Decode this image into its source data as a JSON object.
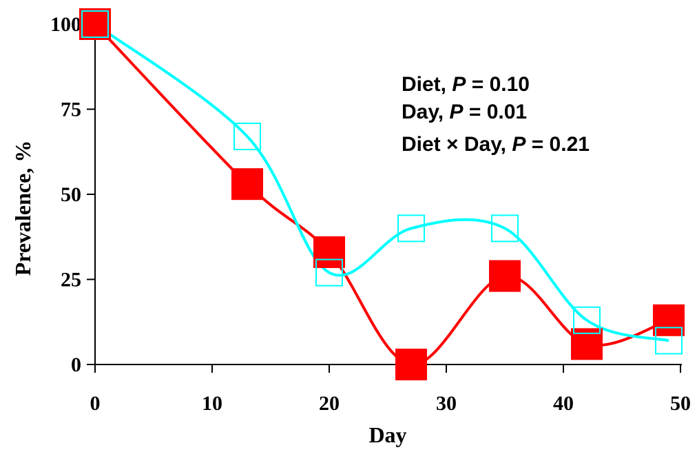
{
  "chart_data": {
    "type": "line",
    "title": "",
    "xlabel": "Day",
    "ylabel": "Prevalence, %",
    "xlim": [
      0,
      50
    ],
    "ylim": [
      0,
      100
    ],
    "xticks": [
      0,
      10,
      20,
      30,
      40,
      50
    ],
    "yticks": [
      0,
      25,
      50,
      75,
      100
    ],
    "x_tick_labels": [
      "0",
      "10",
      "20",
      "30",
      "40",
      "50"
    ],
    "y_tick_labels": [
      "0",
      "25",
      "50",
      "75",
      "100"
    ],
    "grid": false,
    "legend": null,
    "series": [
      {
        "marker": "filled-square",
        "color": "#ff0000",
        "points": [
          {
            "x": 0,
            "y": 100
          },
          {
            "x": 13,
            "y": 53
          },
          {
            "x": 20,
            "y": 33
          },
          {
            "x": 27,
            "y": 0
          },
          {
            "x": 35,
            "y": 26
          },
          {
            "x": 42,
            "y": 6
          },
          {
            "x": 49,
            "y": 13
          }
        ]
      },
      {
        "marker": "open-square",
        "color": "#00ffff",
        "points": [
          {
            "x": 0,
            "y": 100
          },
          {
            "x": 13,
            "y": 67
          },
          {
            "x": 20,
            "y": 27
          },
          {
            "x": 27,
            "y": 40
          },
          {
            "x": 35,
            "y": 40
          },
          {
            "x": 42,
            "y": 13
          },
          {
            "x": 49,
            "y": 7
          }
        ]
      }
    ],
    "annotations": [
      {
        "label": "Diet, ",
        "p_symbol": "P",
        "value": " = 0.10"
      },
      {
        "label": "Day, ",
        "p_symbol": "P",
        "value": " = 0.01"
      },
      {
        "label": "Diet × Day, ",
        "p_symbol": "P",
        "value": " = 0.21"
      }
    ]
  }
}
